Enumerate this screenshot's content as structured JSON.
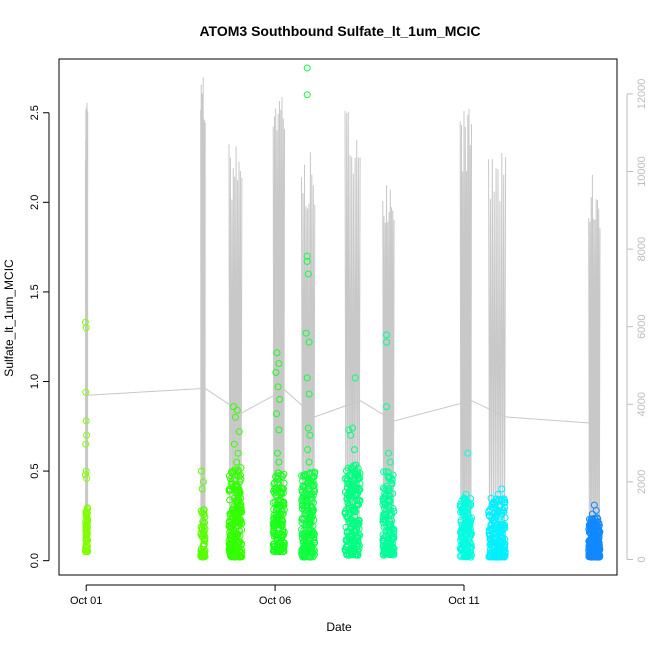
{
  "chart_data": {
    "type": "scatter",
    "title": "ATOM3 Southbound Sulfate_lt_1um_MCIC",
    "xlabel": "Date",
    "ylabel": "Sulfate_lt_1um_MCIC",
    "x_ticks": [
      {
        "day": 1,
        "label": "Oct 01"
      },
      {
        "day": 6,
        "label": "Oct 06"
      },
      {
        "day": 11,
        "label": "Oct 11"
      }
    ],
    "xlim_day": [
      0.28,
      15.05
    ],
    "ylim": [
      -0.08,
      2.8
    ],
    "y_ticks": [
      0.0,
      0.5,
      1.0,
      1.5,
      2.0,
      2.5
    ],
    "y_tick_labels": [
      "0.0",
      "0.5",
      "1.0",
      "1.5",
      "2.0",
      "2.5"
    ],
    "y2_ticks": [
      0,
      2000,
      4000,
      6000,
      8000,
      10000,
      12000
    ],
    "y2_tick_labels": [
      "0",
      "2000",
      "4000",
      "6000",
      "8000",
      "10000",
      "12000"
    ],
    "y2lim": [
      -400,
      12900
    ],
    "grid": false,
    "marker": "open-circle",
    "altitude_line_color": "#c8c8c8",
    "series": [
      {
        "day": 1.0,
        "color": "#80ff00",
        "points": [
          [
            0.98,
            1.33
          ],
          [
            1.0,
            1.3
          ],
          [
            0.99,
            0.94
          ],
          [
            1.0,
            0.78
          ],
          [
            1.01,
            0.7
          ],
          [
            0.99,
            0.65
          ],
          [
            1.0,
            0.5
          ],
          [
            0.98,
            0.48
          ],
          [
            1.01,
            0.46
          ]
        ],
        "cluster": {
          "from": 0.98,
          "to": 1.04,
          "ymin": 0.05,
          "ymax": 0.3,
          "n": 60
        },
        "alt_peak": 12100
      },
      {
        "day": 4.1,
        "color": "#58ff00",
        "points": [
          [
            4.05,
            0.5
          ],
          [
            4.1,
            0.44
          ],
          [
            4.07,
            0.4
          ]
        ],
        "cluster": {
          "from": 4.03,
          "to": 4.15,
          "ymin": 0.02,
          "ymax": 0.3,
          "n": 55
        },
        "alt_peak": 12600
      },
      {
        "day": 4.95,
        "color": "#33ff00",
        "points": [
          [
            4.9,
            0.86
          ],
          [
            5.0,
            0.84
          ],
          [
            4.95,
            0.8
          ],
          [
            5.05,
            0.72
          ],
          [
            4.92,
            0.65
          ],
          [
            5.02,
            0.6
          ],
          [
            4.98,
            0.55
          ]
        ],
        "cluster": {
          "from": 4.78,
          "to": 5.12,
          "ymin": 0.02,
          "ymax": 0.52,
          "n": 220
        },
        "alt_peak": 10800
      },
      {
        "day": 6.1,
        "color": "#1aff1a",
        "points": [
          [
            6.05,
            1.16
          ],
          [
            6.1,
            1.1
          ],
          [
            6.02,
            1.05
          ],
          [
            6.08,
            0.97
          ],
          [
            6.12,
            0.9
          ],
          [
            6.04,
            0.82
          ],
          [
            6.1,
            0.73
          ],
          [
            6.06,
            0.6
          ],
          [
            6.1,
            0.55
          ]
        ],
        "cluster": {
          "from": 5.95,
          "to": 6.25,
          "ymin": 0.05,
          "ymax": 0.5,
          "n": 150
        },
        "alt_peak": 12500
      },
      {
        "day": 6.95,
        "color": "#10ff40",
        "points": [
          [
            6.85,
            2.75
          ],
          [
            6.85,
            2.6
          ],
          [
            6.85,
            1.7
          ],
          [
            6.85,
            1.67
          ],
          [
            6.88,
            1.6
          ],
          [
            6.82,
            1.27
          ],
          [
            6.9,
            1.22
          ],
          [
            6.85,
            1.02
          ],
          [
            6.9,
            0.93
          ],
          [
            6.88,
            0.74
          ],
          [
            6.92,
            0.7
          ],
          [
            6.86,
            0.62
          ],
          [
            6.9,
            0.55
          ]
        ],
        "cluster": {
          "from": 6.7,
          "to": 7.05,
          "ymin": 0.02,
          "ymax": 0.5,
          "n": 200
        },
        "alt_peak": 10500
      },
      {
        "day": 8.05,
        "color": "#00ff80",
        "points": [
          [
            7.95,
            0.73
          ],
          [
            8.05,
            0.74
          ],
          [
            8.12,
            1.02
          ],
          [
            8.0,
            0.7
          ],
          [
            8.1,
            0.62
          ]
        ],
        "cluster": {
          "from": 7.85,
          "to": 8.25,
          "ymin": 0.03,
          "ymax": 0.55,
          "n": 200
        },
        "alt_peak": 11700
      },
      {
        "day": 9.05,
        "color": "#00ff99",
        "points": [
          [
            8.95,
            1.26
          ],
          [
            8.95,
            1.22
          ],
          [
            8.95,
            0.86
          ],
          [
            9.0,
            0.6
          ],
          [
            9.05,
            0.55
          ]
        ],
        "cluster": {
          "from": 8.85,
          "to": 9.15,
          "ymin": 0.03,
          "ymax": 0.5,
          "n": 160
        },
        "alt_peak": 10200
      },
      {
        "day": 11.05,
        "color": "#00ffe0",
        "points": [
          [
            11.1,
            0.6
          ],
          [
            11.05,
            0.37
          ],
          [
            11.0,
            0.35
          ]
        ],
        "cluster": {
          "from": 10.9,
          "to": 11.2,
          "ymin": 0.02,
          "ymax": 0.35,
          "n": 160
        },
        "alt_peak": 11700
      },
      {
        "day": 11.9,
        "color": "#00f0ff",
        "points": [
          [
            12.0,
            0.4
          ],
          [
            11.9,
            0.37
          ],
          [
            11.85,
            0.33
          ]
        ],
        "cluster": {
          "from": 11.65,
          "to": 12.1,
          "ymin": 0.02,
          "ymax": 0.35,
          "n": 200
        },
        "alt_peak": 10500
      },
      {
        "day": 14.45,
        "color": "#1188ff",
        "points": [
          [
            14.45,
            0.31
          ],
          [
            14.5,
            0.28
          ],
          [
            14.4,
            0.26
          ]
        ],
        "cluster": {
          "from": 14.3,
          "to": 14.6,
          "ymin": 0.02,
          "ymax": 0.24,
          "n": 200
        },
        "alt_peak": 10000
      }
    ]
  }
}
